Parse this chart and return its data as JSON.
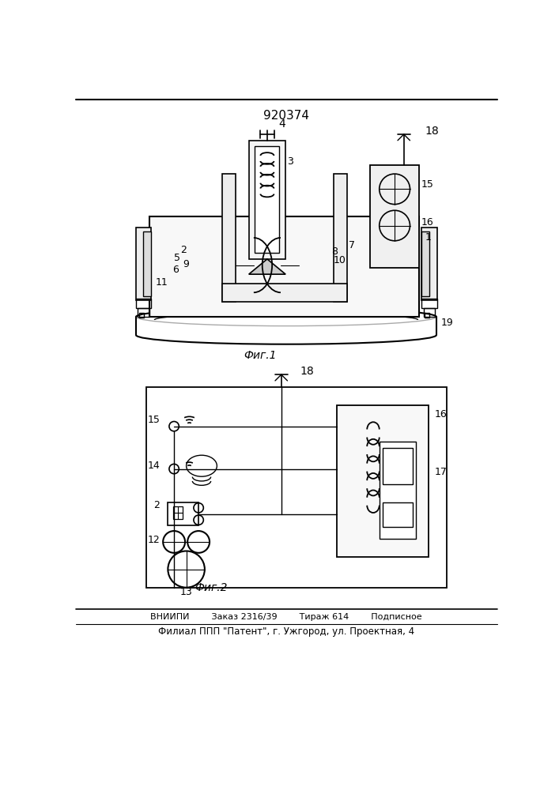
{
  "title": "920374",
  "fig1_label": "Фиг.1",
  "fig2_label": "Фиг.2",
  "bottom_line1": "ВНИИПИ        Заказ 2316/39        Тираж 614        Подписное",
  "bottom_line2": "Филиал ППП \"Патент\", г. Ужгород, ул. Проектная, 4",
  "bg_color": "#ffffff",
  "line_color": "#000000"
}
